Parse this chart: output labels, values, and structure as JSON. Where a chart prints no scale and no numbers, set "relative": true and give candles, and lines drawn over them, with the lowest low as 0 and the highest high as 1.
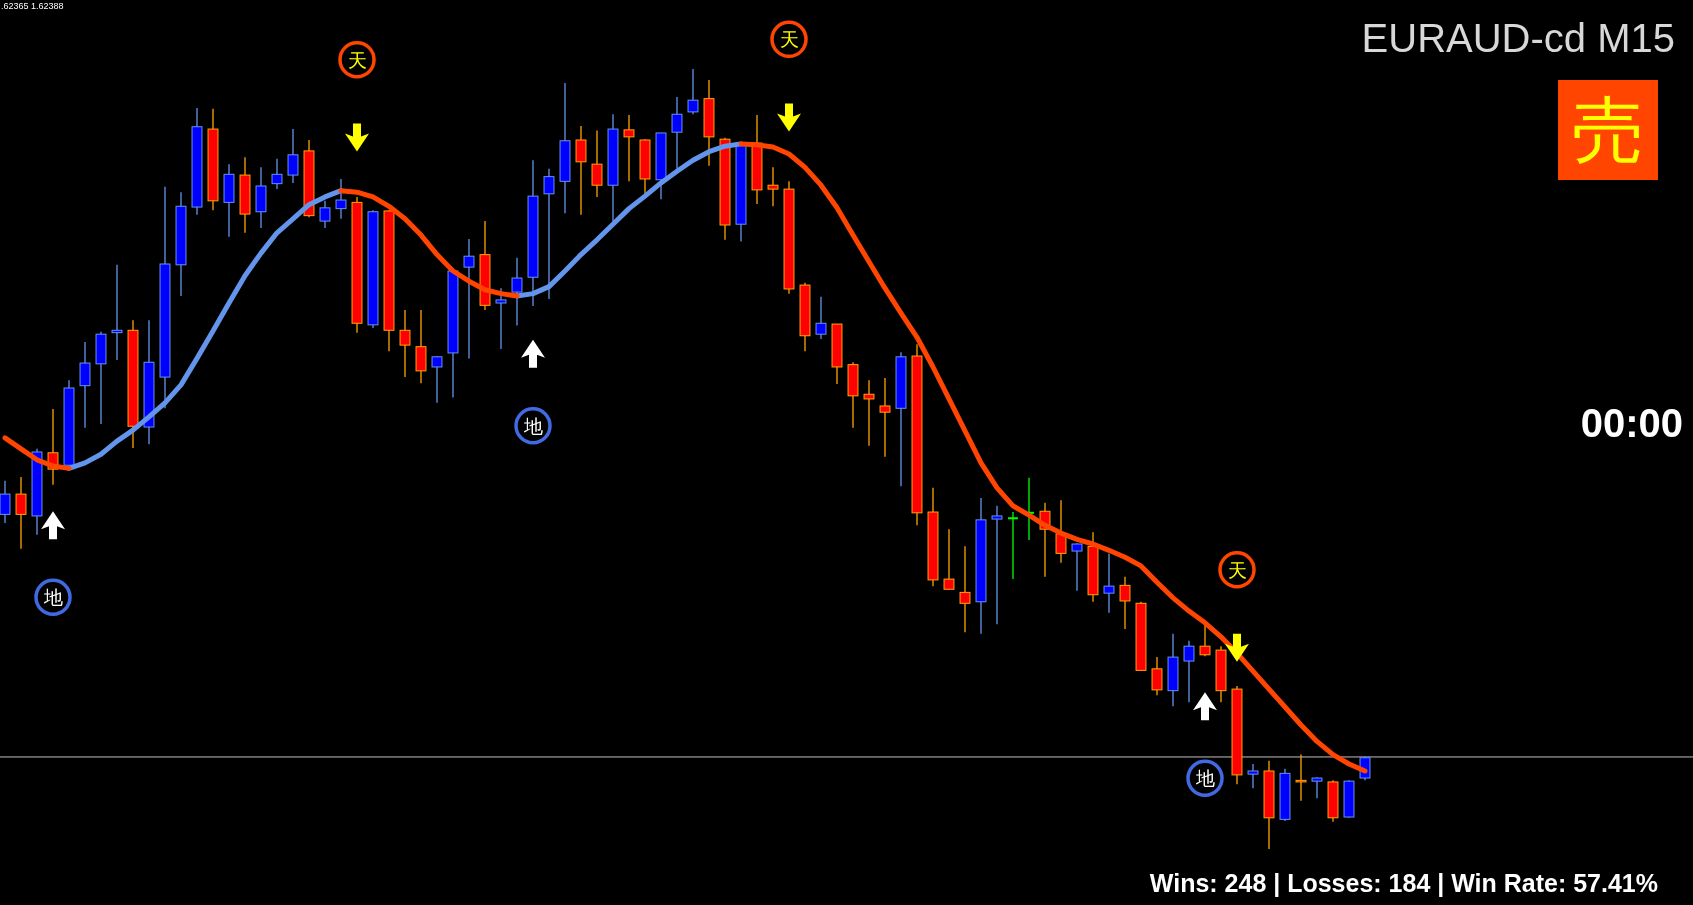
{
  "chart_data": {
    "type": "candlestick",
    "title": "EURAUD-cd M15",
    "relative": true,
    "legend": false,
    "grid": false,
    "categories": [
      null,
      null,
      null,
      null,
      null,
      null,
      null,
      null,
      null,
      null,
      null,
      null,
      null,
      null,
      null,
      null,
      null,
      null,
      null,
      null,
      null,
      null,
      null,
      null,
      null,
      null,
      null,
      null,
      null,
      null,
      null,
      null,
      null,
      null,
      null,
      null,
      null,
      null,
      null,
      null,
      null,
      null,
      null,
      null,
      null,
      null,
      null,
      null,
      null,
      null,
      null,
      null,
      null,
      null,
      null,
      null,
      null,
      null,
      null,
      null,
      null,
      null,
      null,
      null,
      null,
      null,
      null,
      null,
      null,
      null,
      null,
      null,
      null,
      null,
      null,
      null,
      null,
      null,
      null,
      null,
      null,
      null,
      null,
      null,
      null,
      null
    ],
    "ohlc": [
      [
        0.429,
        0.472,
        0.418,
        0.455
      ],
      [
        0.455,
        0.477,
        0.385,
        0.429
      ],
      [
        0.427,
        0.513,
        0.403,
        0.509
      ],
      [
        0.508,
        0.564,
        0.467,
        0.487
      ],
      [
        0.492,
        0.601,
        0.492,
        0.591
      ],
      [
        0.594,
        0.65,
        0.54,
        0.623
      ],
      [
        0.622,
        0.663,
        0.545,
        0.66
      ],
      [
        0.662,
        0.749,
        0.627,
        0.665
      ],
      [
        0.665,
        0.678,
        0.514,
        0.542
      ],
      [
        0.541,
        0.678,
        0.519,
        0.624
      ],
      [
        0.605,
        0.849,
        0.565,
        0.75
      ],
      [
        0.749,
        0.842,
        0.709,
        0.824
      ],
      [
        0.823,
        0.95,
        0.813,
        0.926
      ],
      [
        0.923,
        0.949,
        0.819,
        0.831
      ],
      [
        0.829,
        0.878,
        0.785,
        0.865
      ],
      [
        0.864,
        0.887,
        0.79,
        0.814
      ],
      [
        0.817,
        0.874,
        0.796,
        0.85
      ],
      [
        0.853,
        0.885,
        0.846,
        0.865
      ],
      [
        0.864,
        0.923,
        0.854,
        0.89
      ],
      [
        0.895,
        0.909,
        0.81,
        0.812
      ],
      [
        0.805,
        0.831,
        0.796,
        0.822
      ],
      [
        0.821,
        0.859,
        0.808,
        0.832
      ],
      [
        0.829,
        0.836,
        0.662,
        0.674
      ],
      [
        0.672,
        0.819,
        0.668,
        0.817
      ],
      [
        0.818,
        0.819,
        0.638,
        0.665
      ],
      [
        0.665,
        0.691,
        0.605,
        0.646
      ],
      [
        0.644,
        0.691,
        0.597,
        0.613
      ],
      [
        0.618,
        0.632,
        0.572,
        0.631
      ],
      [
        0.636,
        0.744,
        0.579,
        0.741
      ],
      [
        0.746,
        0.782,
        0.629,
        0.76
      ],
      [
        0.762,
        0.805,
        0.691,
        0.697
      ],
      [
        0.7,
        0.719,
        0.641,
        0.704
      ],
      [
        0.714,
        0.758,
        0.671,
        0.732
      ],
      [
        0.733,
        0.883,
        0.696,
        0.837
      ],
      [
        0.84,
        0.872,
        0.705,
        0.862
      ],
      [
        0.856,
        0.982,
        0.815,
        0.908
      ],
      [
        0.909,
        0.927,
        0.813,
        0.881
      ],
      [
        0.878,
        0.921,
        0.836,
        0.851
      ],
      [
        0.851,
        0.942,
        0.805,
        0.923
      ],
      [
        0.922,
        0.941,
        0.856,
        0.913
      ],
      [
        0.909,
        0.91,
        0.841,
        0.859
      ],
      [
        0.858,
        0.918,
        0.833,
        0.918
      ],
      [
        0.919,
        0.964,
        0.872,
        0.942
      ],
      [
        0.945,
        1.0,
        0.942,
        0.96
      ],
      [
        0.962,
        0.986,
        0.876,
        0.913
      ],
      [
        0.91,
        0.912,
        0.781,
        0.8
      ],
      [
        0.801,
        0.906,
        0.779,
        0.905
      ],
      [
        0.905,
        0.941,
        0.827,
        0.845
      ],
      [
        0.851,
        0.874,
        0.824,
        0.846
      ],
      [
        0.846,
        0.856,
        0.712,
        0.718
      ],
      [
        0.723,
        0.726,
        0.638,
        0.658
      ],
      [
        0.66,
        0.708,
        0.654,
        0.674
      ],
      [
        0.673,
        0.673,
        0.596,
        0.618
      ],
      [
        0.621,
        0.624,
        0.54,
        0.581
      ],
      [
        0.583,
        0.601,
        0.517,
        0.577
      ],
      [
        0.568,
        0.604,
        0.503,
        0.56
      ],
      [
        0.565,
        0.637,
        0.465,
        0.631
      ],
      [
        0.632,
        0.647,
        0.415,
        0.431
      ],
      [
        0.432,
        0.463,
        0.337,
        0.345
      ],
      [
        0.346,
        0.41,
        0.333,
        0.333
      ],
      [
        0.329,
        0.388,
        0.278,
        0.315
      ],
      [
        0.317,
        0.45,
        0.276,
        0.422
      ],
      [
        0.423,
        0.44,
        0.288,
        0.427
      ],
      [
        0.424,
        0.432,
        0.346,
        0.424
      ],
      [
        0.431,
        0.476,
        0.396,
        0.431
      ],
      [
        0.433,
        0.444,
        0.349,
        0.41
      ],
      [
        0.404,
        0.447,
        0.367,
        0.379
      ],
      [
        0.382,
        0.392,
        0.331,
        0.391
      ],
      [
        0.388,
        0.406,
        0.317,
        0.326
      ],
      [
        0.328,
        0.379,
        0.303,
        0.337
      ],
      [
        0.338,
        0.349,
        0.282,
        0.318
      ],
      [
        0.315,
        0.317,
        0.229,
        0.229
      ],
      [
        0.231,
        0.246,
        0.197,
        0.204
      ],
      [
        0.203,
        0.276,
        0.183,
        0.246
      ],
      [
        0.241,
        0.267,
        0.188,
        0.26
      ],
      [
        0.26,
        0.287,
        0.247,
        0.249
      ],
      [
        0.255,
        0.26,
        0.188,
        0.203
      ],
      [
        0.205,
        0.209,
        0.083,
        0.095
      ],
      [
        0.096,
        0.109,
        0.078,
        0.1
      ],
      [
        0.1,
        0.113,
        0.0,
        0.04
      ],
      [
        0.038,
        0.103,
        0.036,
        0.097
      ],
      [
        0.088,
        0.121,
        0.062,
        0.086
      ],
      [
        0.087,
        0.092,
        0.065,
        0.091
      ],
      [
        0.086,
        0.088,
        0.035,
        0.04
      ],
      [
        0.041,
        0.088,
        0.04,
        0.087
      ],
      [
        0.091,
        0.119,
        0.088,
        0.117
      ]
    ],
    "colors": [
      "#0000ff",
      "#ff0000",
      "#0000ff",
      "#ff0000",
      "#0000ff",
      "#0000ff",
      "#0000ff",
      "#0000ff",
      "#ff0000",
      "#0000ff",
      "#0000ff",
      "#0000ff",
      "#0000ff",
      "#ff0000",
      "#0000ff",
      "#ff0000",
      "#0000ff",
      "#0000ff",
      "#0000ff",
      "#ff0000",
      "#0000ff",
      "#0000ff",
      "#ff0000",
      "#0000ff",
      "#ff0000",
      "#ff0000",
      "#ff0000",
      "#0000ff",
      "#0000ff",
      "#0000ff",
      "#ff0000",
      "#0000ff",
      "#0000ff",
      "#0000ff",
      "#0000ff",
      "#0000ff",
      "#ff0000",
      "#ff0000",
      "#0000ff",
      "#ff0000",
      "#ff0000",
      "#0000ff",
      "#0000ff",
      "#0000ff",
      "#ff0000",
      "#ff0000",
      "#0000ff",
      "#ff0000",
      "#ff0000",
      "#ff0000",
      "#ff0000",
      "#0000ff",
      "#ff0000",
      "#ff0000",
      "#ff0000",
      "#ff0000",
      "#0000ff",
      "#ff0000",
      "#ff0000",
      "#ff0000",
      "#ff0000",
      "#0000ff",
      "#0000ff",
      "#00ff00",
      "#00ff00",
      "#ff0000",
      "#ff0000",
      "#0000ff",
      "#ff0000",
      "#0000ff",
      "#ff0000",
      "#ff0000",
      "#ff0000",
      "#0000ff",
      "#0000ff",
      "#ff0000",
      "#ff0000",
      "#ff0000",
      "#0000ff",
      "#ff0000",
      "#0000ff",
      "#ff0000",
      "#0000ff",
      "#ff0000",
      "#0000ff",
      "#0000ff"
    ],
    "series": [
      {
        "type": "line",
        "color": "#6495ed",
        "values": [
          null,
          null,
          null,
          null,
          0.488,
          0.495,
          0.506,
          0.523,
          0.537,
          0.554,
          0.572,
          0.595,
          0.629,
          0.664,
          0.7,
          0.735,
          0.764,
          0.79,
          0.808,
          0.826,
          0.836,
          0.844,
          null,
          null,
          null,
          null,
          null,
          null,
          null,
          null,
          null,
          null,
          0.709,
          0.712,
          0.721,
          0.741,
          0.762,
          0.781,
          0.801,
          0.821,
          0.837,
          0.854,
          0.869,
          0.883,
          0.894,
          0.901,
          0.904,
          null,
          null,
          null,
          null,
          null,
          null,
          null,
          null,
          null,
          null,
          null,
          null,
          null,
          null,
          null,
          null,
          null,
          null,
          null,
          null,
          null,
          null,
          null,
          null,
          null,
          null,
          null,
          null,
          null,
          null,
          null,
          null,
          null,
          null,
          null,
          null,
          null,
          null,
          null
        ]
      },
      {
        "type": "line",
        "color": "#ff4500",
        "values": [
          0.527,
          0.513,
          0.499,
          0.491,
          0.488,
          null,
          null,
          null,
          null,
          null,
          null,
          null,
          null,
          null,
          null,
          null,
          null,
          null,
          null,
          null,
          null,
          0.844,
          0.842,
          0.836,
          0.824,
          0.808,
          0.787,
          0.762,
          0.741,
          0.728,
          0.717,
          0.712,
          0.709,
          null,
          null,
          null,
          null,
          null,
          null,
          null,
          null,
          null,
          null,
          null,
          null,
          null,
          0.904,
          0.903,
          0.9,
          0.891,
          0.874,
          0.851,
          0.822,
          0.787,
          0.753,
          0.719,
          0.687,
          0.656,
          0.618,
          0.577,
          0.536,
          0.495,
          0.463,
          0.44,
          0.428,
          0.415,
          0.405,
          0.397,
          0.391,
          0.383,
          0.374,
          0.363,
          0.342,
          0.322,
          0.305,
          0.29,
          0.272,
          0.251,
          0.228,
          0.205,
          0.182,
          0.159,
          0.138,
          0.121,
          0.109,
          0.1
        ]
      },
      {
        "type": "scatter",
        "name": "天",
        "color": "#ffff00",
        "values": [
          null,
          null,
          null,
          null,
          null,
          null,
          null,
          null,
          null,
          null,
          null,
          null,
          null,
          null,
          null,
          null,
          null,
          null,
          null,
          null,
          null,
          null,
          0.912,
          null,
          null,
          null,
          null,
          null,
          null,
          null,
          null,
          null,
          null,
          null,
          null,
          null,
          null,
          null,
          null,
          null,
          null,
          null,
          null,
          null,
          null,
          null,
          null,
          null,
          null,
          0.938,
          null,
          null,
          null,
          null,
          null,
          null,
          null,
          null,
          null,
          null,
          null,
          null,
          null,
          null,
          null,
          null,
          null,
          null,
          null,
          null,
          null,
          null,
          null,
          null,
          null,
          null,
          null,
          0.258,
          null,
          null,
          null,
          null,
          null,
          null,
          null,
          null
        ]
      },
      {
        "type": "scatter",
        "name": "地",
        "color": "#ffffff",
        "values": [
          null,
          null,
          null,
          0.415,
          null,
          null,
          null,
          null,
          null,
          null,
          null,
          null,
          null,
          null,
          null,
          null,
          null,
          null,
          null,
          null,
          null,
          null,
          null,
          null,
          null,
          null,
          null,
          null,
          null,
          null,
          null,
          null,
          null,
          0.635,
          null,
          null,
          null,
          null,
          null,
          null,
          null,
          null,
          null,
          null,
          null,
          null,
          null,
          null,
          null,
          null,
          null,
          null,
          null,
          null,
          null,
          null,
          null,
          null,
          null,
          null,
          null,
          null,
          null,
          null,
          null,
          null,
          null,
          null,
          null,
          null,
          null,
          null,
          null,
          null,
          null,
          0.183,
          null,
          null,
          null,
          null,
          null,
          null,
          null,
          null,
          null,
          null
        ]
      }
    ],
    "ref_lines": [
      {
        "axis": "y",
        "value": 0.118,
        "color": "#c0c0c0"
      }
    ],
    "annotations": [
      ".62365 1.62388",
      "売",
      "00:00",
      "Wins: 248 | Losses: 184 | Win Rate: 57.41%"
    ]
  }
}
